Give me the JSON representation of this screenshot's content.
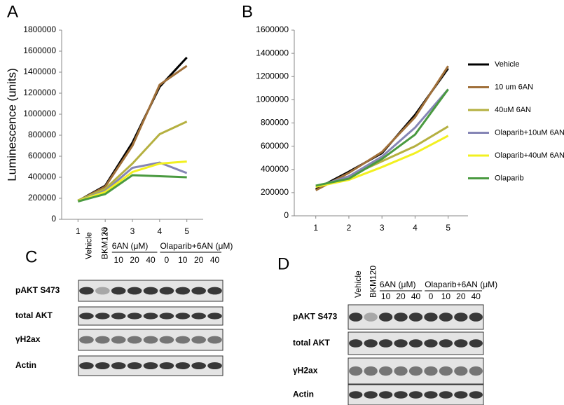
{
  "chart_data": [
    {
      "type": "line",
      "panel": "A",
      "ylabel": "Luminescence (units)",
      "x": [
        1,
        2,
        3,
        4,
        5
      ],
      "xlim": [
        0.4,
        5.6
      ],
      "xticks": [
        1,
        2,
        3,
        4,
        5
      ],
      "ylim": [
        0,
        1800000
      ],
      "yticks": [
        0,
        200000,
        400000,
        600000,
        800000,
        1000000,
        1200000,
        1400000,
        1600000,
        1800000
      ],
      "series": [
        {
          "color": "#000000",
          "values": [
            175000,
            320000,
            730000,
            1260000,
            1540000
          ]
        },
        {
          "color": "#a0703a",
          "values": [
            175000,
            310000,
            700000,
            1280000,
            1460000
          ]
        },
        {
          "color": "#b5b040",
          "values": [
            180000,
            290000,
            530000,
            810000,
            930000
          ]
        },
        {
          "color": "#8585b5",
          "values": [
            175000,
            270000,
            490000,
            540000,
            440000
          ]
        },
        {
          "color": "#f2f020",
          "values": [
            175000,
            260000,
            450000,
            530000,
            550000
          ]
        },
        {
          "color": "#4a9a40",
          "values": [
            170000,
            240000,
            420000,
            410000,
            400000
          ]
        }
      ]
    },
    {
      "type": "line",
      "panel": "B",
      "x": [
        1,
        2,
        3,
        4,
        5
      ],
      "xlim": [
        0.35,
        5.6
      ],
      "xticks": [
        1,
        2,
        3,
        4,
        5
      ],
      "ylim": [
        0,
        1600000
      ],
      "yticks": [
        0,
        200000,
        400000,
        600000,
        800000,
        1000000,
        1200000,
        1400000,
        1600000
      ],
      "series": [
        {
          "name": "Vehicle",
          "color": "#000000",
          "values": [
            230000,
            380000,
            540000,
            870000,
            1270000
          ]
        },
        {
          "name": "10 um 6AN",
          "color": "#a0703a",
          "values": [
            220000,
            370000,
            550000,
            850000,
            1290000
          ]
        },
        {
          "name": "40uM 6AN",
          "color": "#b5b040",
          "values": [
            250000,
            340000,
            470000,
            600000,
            770000
          ]
        },
        {
          "name": "Olaparib+10uM 6AN",
          "color": "#8585b5",
          "values": [
            250000,
            340000,
            510000,
            760000,
            1090000
          ]
        },
        {
          "name": "Olaparib+40uM 6AN",
          "color": "#f2f020",
          "values": [
            250000,
            310000,
            420000,
            540000,
            690000
          ]
        },
        {
          "name": "Olaparib",
          "color": "#4a9a40",
          "values": [
            260000,
            320000,
            490000,
            700000,
            1090000
          ]
        }
      ]
    }
  ],
  "blots": [
    {
      "panel": "C",
      "lanes": [
        "Vehicle",
        "BKM120"
      ],
      "groups": [
        {
          "title": "6AN (μM)",
          "doses": [
            10,
            20,
            40
          ]
        },
        {
          "title": "Olaparib+6AN (μM)",
          "doses": [
            0,
            10,
            20,
            40
          ]
        }
      ],
      "rows": [
        "pAKT S473",
        "total AKT",
        "γH2ax",
        "Actin"
      ]
    },
    {
      "panel": "D",
      "lanes": [
        "Vehicle",
        "BKM120"
      ],
      "groups": [
        {
          "title": "6AN (μM)",
          "doses": [
            10,
            20,
            40
          ]
        },
        {
          "title": "Olaparib+6AN (μM)",
          "doses": [
            0,
            10,
            20,
            40
          ]
        }
      ],
      "rows": [
        "pAKT S473",
        "total AKT",
        "γH2ax",
        "Actin"
      ]
    }
  ]
}
